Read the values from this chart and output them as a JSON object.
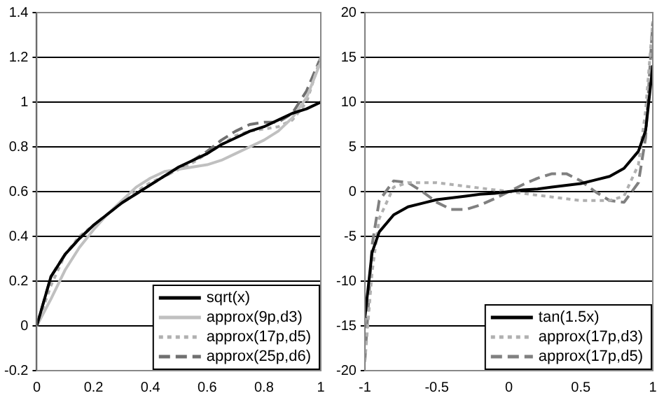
{
  "chart_data": [
    {
      "type": "line",
      "x": [
        0,
        0.05,
        0.1,
        0.15,
        0.2,
        0.25,
        0.3,
        0.35,
        0.4,
        0.45,
        0.5,
        0.55,
        0.6,
        0.65,
        0.7,
        0.75,
        0.8,
        0.85,
        0.9,
        0.95,
        1
      ],
      "xlim": [
        0,
        1
      ],
      "xticks": [
        0,
        0.2,
        0.4,
        0.6,
        0.8,
        1
      ],
      "ylim": [
        -0.2,
        1.4
      ],
      "yticks": [
        -0.2,
        0,
        0.2,
        0.4,
        0.6,
        0.8,
        1,
        1.2,
        1.4
      ],
      "grid": "y",
      "legend": "bottom right",
      "marker": "none",
      "series": [
        {
          "name": "sqrt(x)",
          "color": "#000000",
          "line_style": "solid",
          "values": [
            0,
            0.22,
            0.32,
            0.39,
            0.45,
            0.5,
            0.55,
            0.59,
            0.63,
            0.67,
            0.71,
            0.74,
            0.77,
            0.81,
            0.84,
            0.87,
            0.89,
            0.92,
            0.95,
            0.97,
            1
          ]
        },
        {
          "name": "approx(9p,d3)",
          "color": "#c0c0c0",
          "line_style": "solid",
          "values": [
            0,
            0.12,
            0.25,
            0.35,
            0.43,
            0.5,
            0.56,
            0.62,
            0.66,
            0.69,
            0.7,
            0.71,
            0.72,
            0.74,
            0.77,
            0.8,
            0.83,
            0.87,
            0.93,
            1.02,
            1.18
          ]
        },
        {
          "name": "approx(17p,d5)",
          "color": "#b0b0b0",
          "line_style": "dotted",
          "values": [
            0,
            0.18,
            0.32,
            0.4,
            0.45,
            0.5,
            0.55,
            0.6,
            0.64,
            0.67,
            0.7,
            0.73,
            0.77,
            0.81,
            0.85,
            0.87,
            0.88,
            0.89,
            0.92,
            1,
            1.2
          ]
        },
        {
          "name": "approx(25p,d6)",
          "color": "#707070",
          "line_style": "dashed",
          "values": [
            0,
            0.22,
            0.32,
            0.39,
            0.45,
            0.5,
            0.55,
            0.59,
            0.63,
            0.67,
            0.7,
            0.74,
            0.78,
            0.83,
            0.87,
            0.9,
            0.91,
            0.91,
            0.95,
            1.05,
            1.2
          ]
        }
      ]
    },
    {
      "type": "line",
      "x": [
        -1,
        -0.95,
        -0.9,
        -0.8,
        -0.7,
        -0.6,
        -0.5,
        -0.4,
        -0.3,
        -0.2,
        -0.1,
        0,
        0.1,
        0.2,
        0.3,
        0.4,
        0.5,
        0.6,
        0.7,
        0.8,
        0.9,
        0.95,
        1
      ],
      "xlim": [
        -1,
        1
      ],
      "xticks": [
        -1,
        -0.5,
        0,
        0.5,
        1
      ],
      "ylim": [
        -20,
        20
      ],
      "yticks": [
        -20,
        -15,
        -10,
        -5,
        0,
        5,
        10,
        15,
        20
      ],
      "grid": "y",
      "legend": "bottom right",
      "marker": "none",
      "series": [
        {
          "name": "tan(1.5x)",
          "color": "#000000",
          "line_style": "solid",
          "values": [
            -14.1,
            -6.8,
            -4.5,
            -2.6,
            -1.7,
            -1.3,
            -0.9,
            -0.7,
            -0.5,
            -0.3,
            -0.2,
            0,
            0.2,
            0.3,
            0.5,
            0.7,
            0.9,
            1.3,
            1.7,
            2.6,
            4.5,
            6.8,
            14.1
          ]
        },
        {
          "name": "approx(17p,d3)",
          "color": "#b0b0b0",
          "line_style": "dotted",
          "values": [
            -19,
            -9,
            -3,
            0.5,
            1,
            1,
            1,
            0.8,
            0.6,
            0.4,
            0.2,
            0,
            -0.2,
            -0.4,
            -0.6,
            -0.8,
            -1,
            -1,
            -1,
            -0.5,
            3,
            9,
            19
          ]
        },
        {
          "name": "approx(17p,d5)",
          "color": "#808080",
          "line_style": "dashed",
          "values": [
            -19,
            -6,
            -1,
            1.2,
            1,
            0,
            -1.2,
            -2,
            -2,
            -1.5,
            -0.8,
            0,
            0.8,
            1.5,
            2,
            2,
            1.2,
            0,
            -1,
            -1.2,
            1,
            6,
            19
          ]
        }
      ]
    }
  ]
}
